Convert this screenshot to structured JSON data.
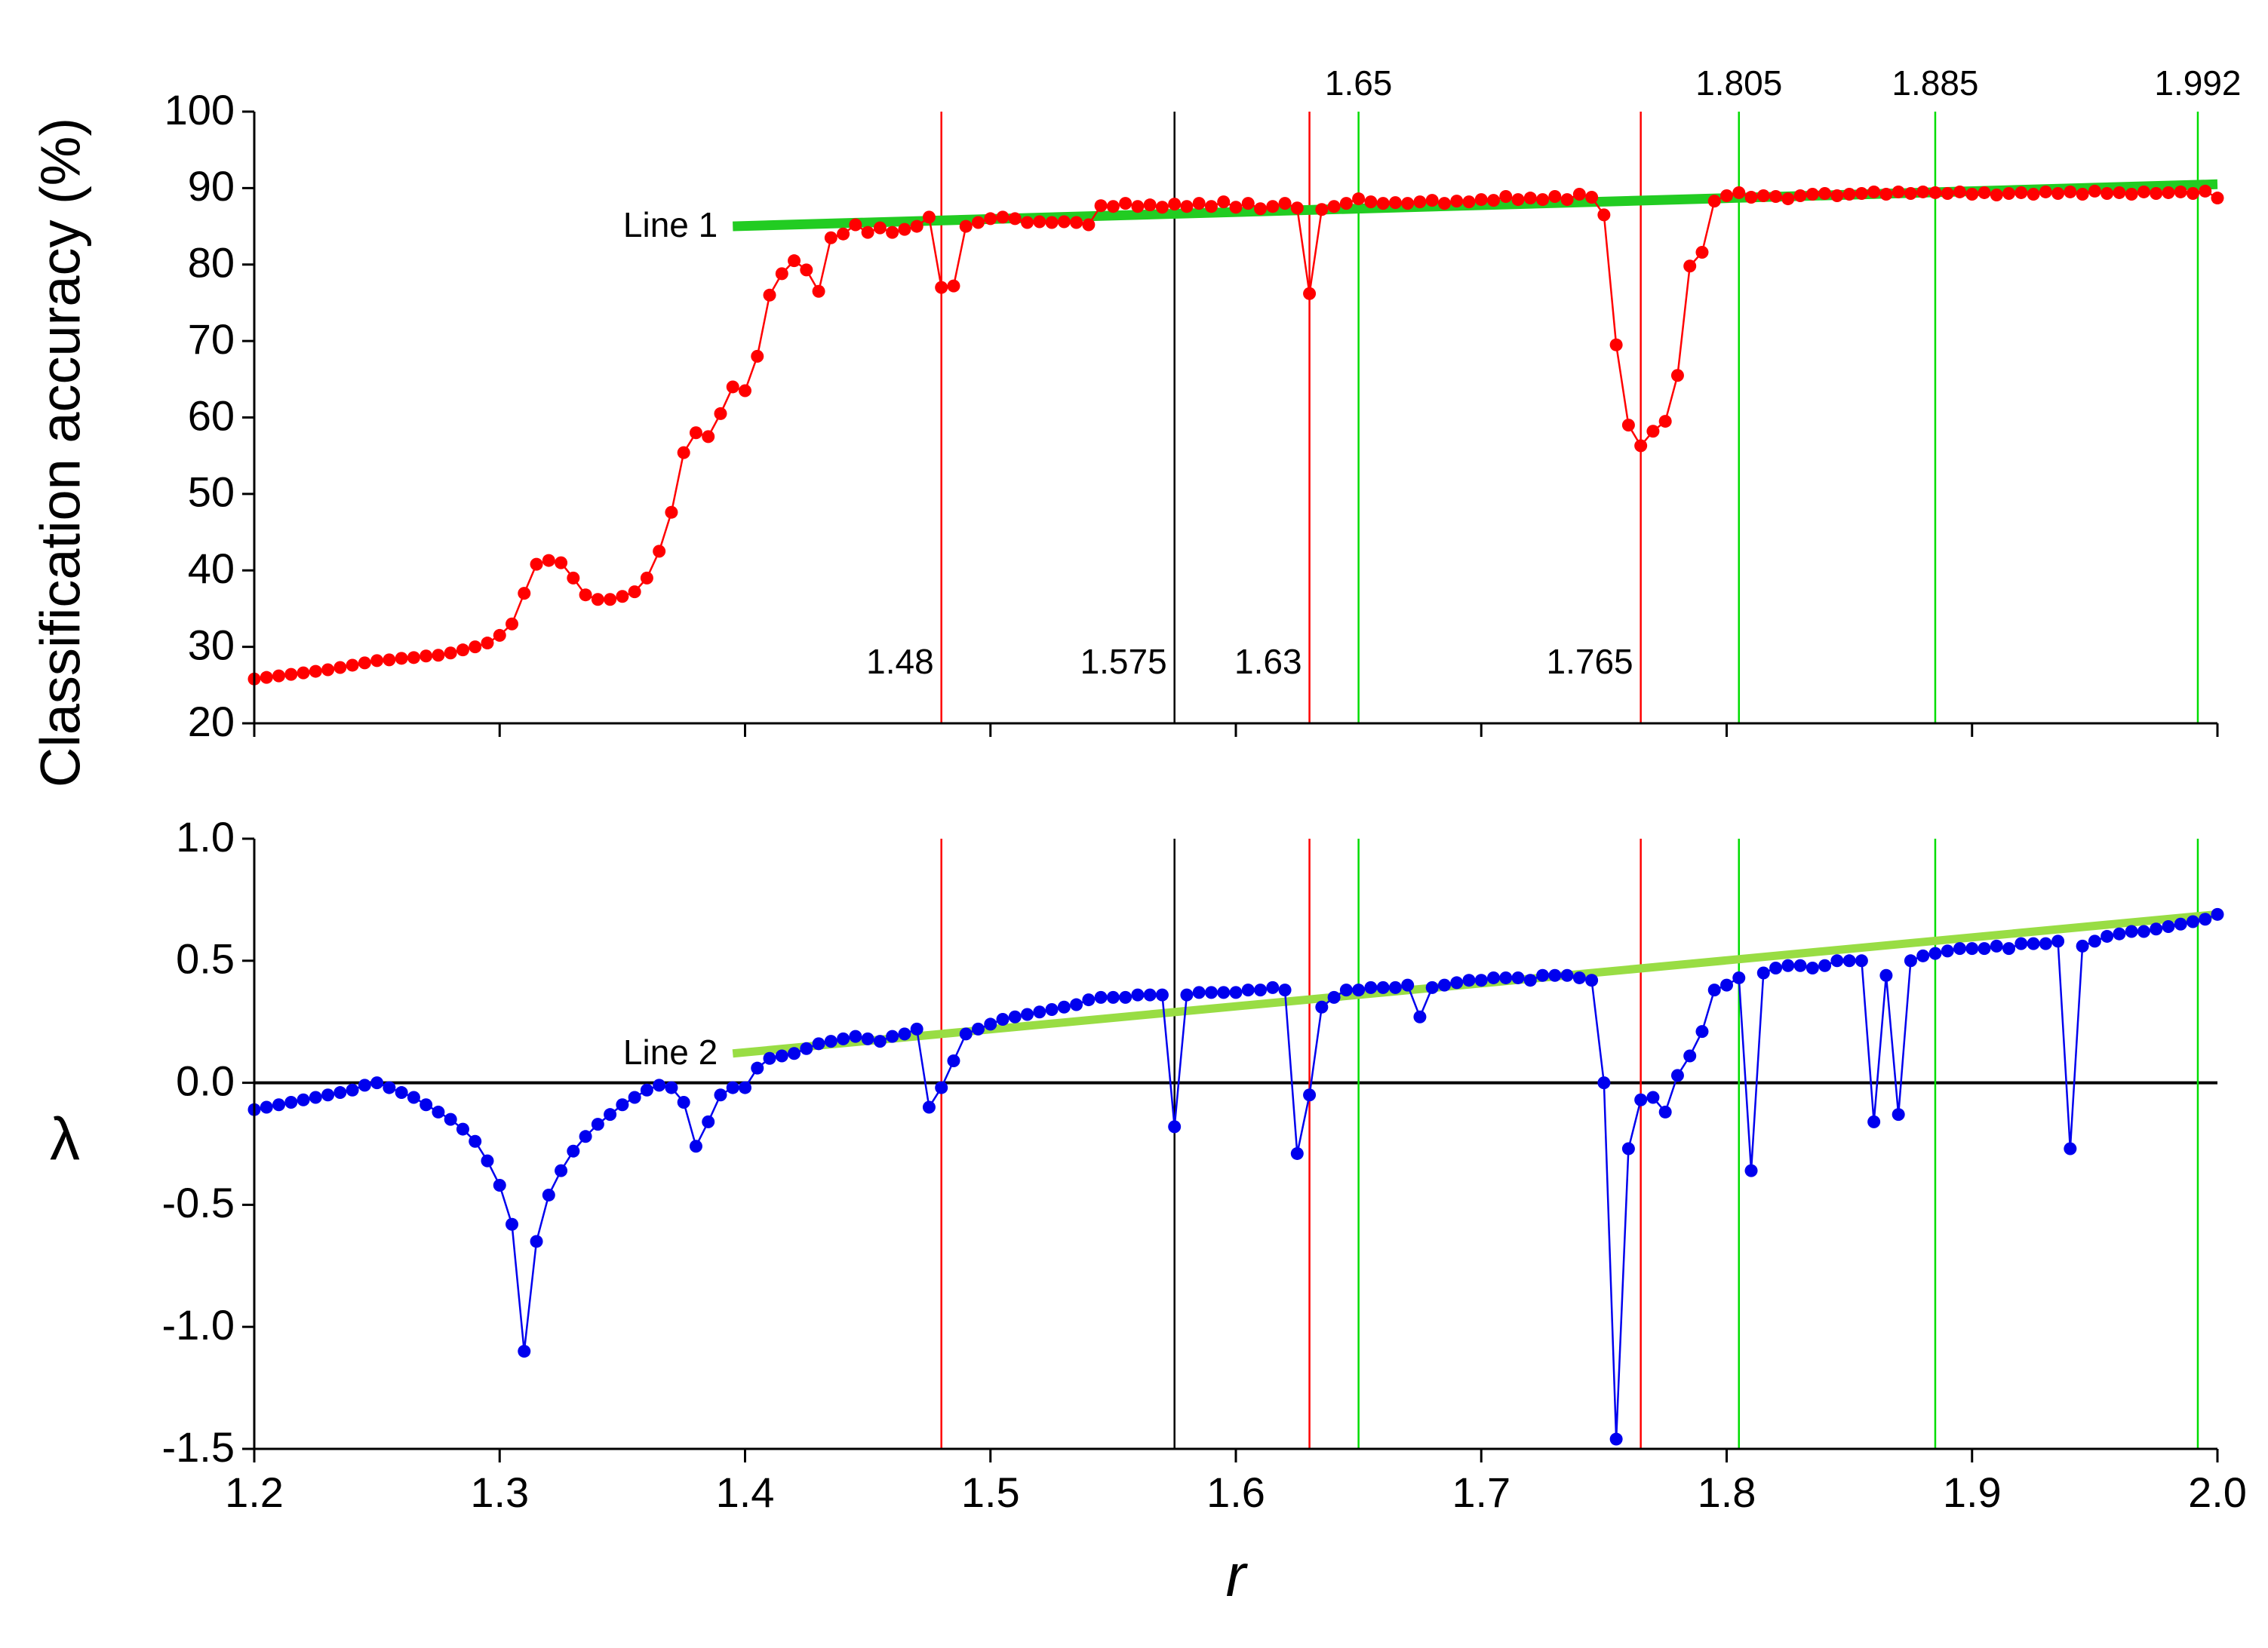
{
  "chart_data": [
    {
      "type": "line",
      "ylabel": "Classification accuracy (%)",
      "xlim": [
        1.2,
        2
      ],
      "ylim": [
        20,
        100
      ],
      "yticks": [
        20,
        30,
        40,
        50,
        60,
        70,
        80,
        90,
        100
      ],
      "x": [
        1.2,
        1.205,
        1.21,
        1.215,
        1.22,
        1.225,
        1.23,
        1.235,
        1.24,
        1.245,
        1.25,
        1.255,
        1.26,
        1.265,
        1.27,
        1.275,
        1.28,
        1.285,
        1.29,
        1.295,
        1.3,
        1.305,
        1.31,
        1.315,
        1.32,
        1.325,
        1.33,
        1.335,
        1.34,
        1.345,
        1.35,
        1.355,
        1.36,
        1.365,
        1.37,
        1.375,
        1.38,
        1.385,
        1.39,
        1.395,
        1.4,
        1.405,
        1.41,
        1.415,
        1.42,
        1.425,
        1.43,
        1.435,
        1.44,
        1.445,
        1.45,
        1.455,
        1.46,
        1.465,
        1.47,
        1.475,
        1.48,
        1.485,
        1.49,
        1.495,
        1.5,
        1.505,
        1.51,
        1.515,
        1.52,
        1.525,
        1.53,
        1.535,
        1.54,
        1.545,
        1.55,
        1.555,
        1.56,
        1.565,
        1.57,
        1.575,
        1.58,
        1.585,
        1.59,
        1.595,
        1.6,
        1.605,
        1.61,
        1.615,
        1.62,
        1.625,
        1.63,
        1.635,
        1.64,
        1.645,
        1.65,
        1.655,
        1.66,
        1.665,
        1.67,
        1.675,
        1.68,
        1.685,
        1.69,
        1.695,
        1.7,
        1.705,
        1.71,
        1.715,
        1.72,
        1.725,
        1.73,
        1.735,
        1.74,
        1.745,
        1.75,
        1.755,
        1.76,
        1.765,
        1.77,
        1.775,
        1.78,
        1.785,
        1.79,
        1.795,
        1.8,
        1.805,
        1.81,
        1.815,
        1.82,
        1.825,
        1.83,
        1.835,
        1.84,
        1.845,
        1.85,
        1.855,
        1.86,
        1.865,
        1.87,
        1.875,
        1.88,
        1.885,
        1.89,
        1.895,
        1.9,
        1.905,
        1.91,
        1.915,
        1.92,
        1.925,
        1.93,
        1.935,
        1.94,
        1.945,
        1.95,
        1.955,
        1.96,
        1.965,
        1.97,
        1.975,
        1.98,
        1.985,
        1.99,
        1.995,
        2
      ],
      "series": [
        {
          "color": "#ff0000",
          "values": [
            25.8,
            26,
            26.2,
            26.4,
            26.6,
            26.8,
            27,
            27.3,
            27.6,
            27.9,
            28.2,
            28.3,
            28.5,
            28.6,
            28.8,
            28.9,
            29.2,
            29.6,
            30,
            30.5,
            31.5,
            33,
            37,
            40.8,
            41.3,
            41,
            39,
            36.8,
            36.2,
            36.2,
            36.6,
            37.2,
            39,
            42.5,
            47.6,
            55.4,
            58,
            57.5,
            60.5,
            64,
            63.5,
            68,
            76,
            78.8,
            80.5,
            79.3,
            76.5,
            83.5,
            84,
            85.2,
            84.2,
            84.8,
            84.2,
            84.6,
            85,
            86.2,
            77,
            77.2,
            85,
            85.5,
            86,
            86.2,
            86,
            85.5,
            85.6,
            85.5,
            85.6,
            85.5,
            85.2,
            87.7,
            87.6,
            88,
            87.6,
            87.8,
            87.5,
            87.9,
            87.6,
            88,
            87.6,
            88.2,
            87.5,
            88,
            87.3,
            87.6,
            88,
            87.4,
            76.2,
            87.2,
            87.6,
            88,
            88.6,
            88.2,
            88,
            88.1,
            88,
            88.2,
            88.4,
            88,
            88.3,
            88.2,
            88.5,
            88.4,
            88.9,
            88.5,
            88.7,
            88.5,
            88.9,
            88.5,
            89.2,
            88.8,
            86.5,
            69.5,
            59,
            56.3,
            58.2,
            59.5,
            65.5,
            79.8,
            81.6,
            88.3,
            89,
            89.4,
            88.8,
            89,
            88.9,
            88.6,
            89,
            89.2,
            89.3,
            89,
            89.2,
            89.3,
            89.5,
            89.2,
            89.5,
            89.3,
            89.5,
            89.4,
            89.3,
            89.5,
            89.2,
            89.4,
            89.1,
            89.3,
            89.4,
            89.2,
            89.5,
            89.3,
            89.5,
            89.2,
            89.6,
            89.3,
            89.4,
            89.2,
            89.5,
            89.3,
            89.4,
            89.5,
            89.3,
            89.6,
            88.7
          ]
        }
      ],
      "fit_line": {
        "name": "Line 1",
        "color": "#22cc22",
        "x": [
          1.395,
          2
        ],
        "values": [
          85,
          90.5
        ]
      },
      "vlines": [
        {
          "value": 1.48,
          "color": "#ff0000"
        },
        {
          "value": 1.575,
          "color": "#000000"
        },
        {
          "value": 1.63,
          "color": "#ff0000"
        },
        {
          "value": 1.65,
          "color": "#00dd00"
        },
        {
          "value": 1.765,
          "color": "#ff0000"
        },
        {
          "value": 1.805,
          "color": "#00dd00"
        },
        {
          "value": 1.885,
          "color": "#00dd00"
        },
        {
          "value": 1.992,
          "color": "#00dd00"
        }
      ]
    },
    {
      "type": "line",
      "ylabel": "λ",
      "xlabel": "r",
      "xlim": [
        1.2,
        2
      ],
      "ylim": [
        -1.5,
        1
      ],
      "xticks": [
        1.2,
        1.3,
        1.4,
        1.5,
        1.6,
        1.7,
        1.8,
        1.9,
        {
          "value": 2,
          "label": "2.0"
        }
      ],
      "yticks": [
        -1.5,
        {
          "value": -1,
          "label": "-1.0"
        },
        -0.5,
        {
          "value": 0,
          "label": "0.0"
        },
        0.5,
        {
          "value": 1,
          "label": "1.0"
        }
      ],
      "zero_line": true,
      "x": [
        1.2,
        1.205,
        1.21,
        1.215,
        1.22,
        1.225,
        1.23,
        1.235,
        1.24,
        1.245,
        1.25,
        1.255,
        1.26,
        1.265,
        1.27,
        1.275,
        1.28,
        1.285,
        1.29,
        1.295,
        1.3,
        1.305,
        1.31,
        1.315,
        1.32,
        1.325,
        1.33,
        1.335,
        1.34,
        1.345,
        1.35,
        1.355,
        1.36,
        1.365,
        1.37,
        1.375,
        1.38,
        1.385,
        1.39,
        1.395,
        1.4,
        1.405,
        1.41,
        1.415,
        1.42,
        1.425,
        1.43,
        1.435,
        1.44,
        1.445,
        1.45,
        1.455,
        1.46,
        1.465,
        1.47,
        1.475,
        1.48,
        1.485,
        1.49,
        1.495,
        1.5,
        1.505,
        1.51,
        1.515,
        1.52,
        1.525,
        1.53,
        1.535,
        1.54,
        1.545,
        1.55,
        1.555,
        1.56,
        1.565,
        1.57,
        1.575,
        1.58,
        1.585,
        1.59,
        1.595,
        1.6,
        1.605,
        1.61,
        1.615,
        1.62,
        1.625,
        1.63,
        1.635,
        1.64,
        1.645,
        1.65,
        1.655,
        1.66,
        1.665,
        1.67,
        1.675,
        1.68,
        1.685,
        1.69,
        1.695,
        1.7,
        1.705,
        1.71,
        1.715,
        1.72,
        1.725,
        1.73,
        1.735,
        1.74,
        1.745,
        1.75,
        1.755,
        1.76,
        1.765,
        1.77,
        1.775,
        1.78,
        1.785,
        1.79,
        1.795,
        1.8,
        1.805,
        1.81,
        1.815,
        1.82,
        1.825,
        1.83,
        1.835,
        1.84,
        1.845,
        1.85,
        1.855,
        1.86,
        1.865,
        1.87,
        1.875,
        1.88,
        1.885,
        1.89,
        1.895,
        1.9,
        1.905,
        1.91,
        1.915,
        1.92,
        1.925,
        1.93,
        1.935,
        1.94,
        1.945,
        1.95,
        1.955,
        1.96,
        1.965,
        1.97,
        1.975,
        1.98,
        1.985,
        1.99,
        1.995,
        2
      ],
      "series": [
        {
          "color": "#0000ee",
          "values": [
            -0.11,
            -0.1,
            -0.09,
            -0.08,
            -0.07,
            -0.06,
            -0.05,
            -0.04,
            -0.03,
            -0.01,
            0,
            -0.02,
            -0.04,
            -0.06,
            -0.09,
            -0.12,
            -0.15,
            -0.19,
            -0.24,
            -0.32,
            -0.42,
            -0.58,
            -1.1,
            -0.65,
            -0.46,
            -0.36,
            -0.28,
            -0.22,
            -0.17,
            -0.13,
            -0.09,
            -0.06,
            -0.03,
            -0.01,
            -0.02,
            -0.08,
            -0.26,
            -0.16,
            -0.05,
            -0.02,
            -0.02,
            0.06,
            0.1,
            0.11,
            0.12,
            0.14,
            0.16,
            0.17,
            0.18,
            0.19,
            0.18,
            0.17,
            0.19,
            0.2,
            0.22,
            -0.1,
            -0.02,
            0.09,
            0.2,
            0.22,
            0.24,
            0.26,
            0.27,
            0.28,
            0.29,
            0.3,
            0.31,
            0.32,
            0.34,
            0.35,
            0.35,
            0.35,
            0.36,
            0.36,
            0.36,
            -0.18,
            0.36,
            0.37,
            0.37,
            0.37,
            0.37,
            0.38,
            0.38,
            0.39,
            0.38,
            -0.29,
            -0.05,
            0.31,
            0.35,
            0.38,
            0.38,
            0.39,
            0.39,
            0.39,
            0.4,
            0.27,
            0.39,
            0.4,
            0.41,
            0.42,
            0.42,
            0.43,
            0.43,
            0.43,
            0.42,
            0.44,
            0.44,
            0.44,
            0.43,
            0.42,
            0,
            -1.46,
            -0.27,
            -0.07,
            -0.06,
            -0.12,
            0.03,
            0.11,
            0.21,
            0.38,
            0.4,
            0.43,
            -0.36,
            0.45,
            0.47,
            0.48,
            0.48,
            0.47,
            0.48,
            0.5,
            0.5,
            0.5,
            -0.16,
            0.44,
            -0.13,
            0.5,
            0.52,
            0.53,
            0.54,
            0.55,
            0.55,
            0.55,
            0.56,
            0.55,
            0.57,
            0.57,
            0.57,
            0.58,
            -0.27,
            0.56,
            0.58,
            0.6,
            0.61,
            0.62,
            0.62,
            0.63,
            0.64,
            0.65,
            0.66,
            0.67,
            0.69
          ]
        }
      ],
      "fit_line": {
        "name": "Line 2",
        "color": "#99dd44",
        "x": [
          1.395,
          2
        ],
        "values": [
          0.12,
          0.69
        ]
      }
    }
  ]
}
